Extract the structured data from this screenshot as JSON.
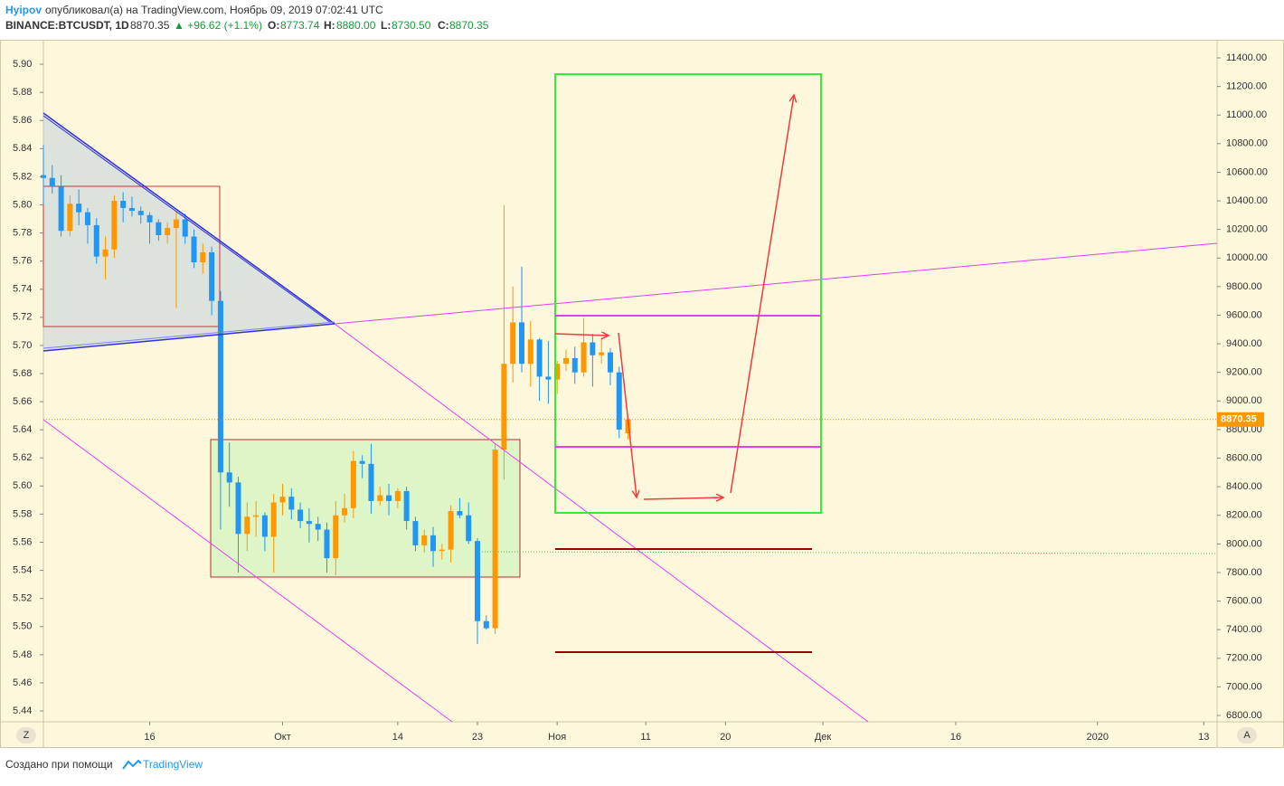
{
  "header": {
    "author": "Hyipov",
    "published": "опубликовал(а) на TradingView.com, Ноябрь 09, 2019 07:02:41 UTC",
    "symbol": "BINANCE:BTCUSDT, 1D",
    "last": "8870.35",
    "change": "▲ +96.62 (+1.1%)",
    "o_label": "O:",
    "o": "8773.74",
    "h_label": "H:",
    "h": "8880.00",
    "l_label": "L:",
    "l": "8730.50",
    "c_label": "C:",
    "c": "8870.35"
  },
  "footer": {
    "made_with": "Создано при помощи",
    "brand": "TradingView"
  },
  "buttons": {
    "left": "Z",
    "right": "A"
  },
  "chart_data": {
    "type": "candlestick",
    "up_color": "#ff9800",
    "down_color": "#2196f3",
    "grid": false,
    "x": [
      247,
      248,
      249,
      250,
      251,
      252,
      253,
      254,
      255,
      256,
      257,
      258,
      259,
      260,
      261,
      262,
      263,
      264,
      265,
      266,
      267,
      268,
      269,
      270,
      271,
      272,
      273,
      274,
      275,
      276,
      277,
      278,
      279,
      280,
      281,
      282,
      283,
      284,
      285,
      286,
      287,
      288,
      289,
      290,
      291,
      292,
      293,
      294,
      295,
      296,
      297,
      298,
      299,
      300,
      301,
      302,
      303,
      304,
      305,
      306,
      307,
      308,
      309,
      310,
      311,
      312,
      313
    ],
    "open": [
      10580,
      10560,
      10500,
      10190,
      10380,
      10320,
      10230,
      10010,
      10060,
      10400,
      10350,
      10330,
      10300,
      10250,
      10160,
      10210,
      10270,
      10150,
      9970,
      10040,
      9700,
      8500,
      8430,
      8070,
      8190,
      8200,
      8050,
      8290,
      8330,
      8240,
      8160,
      8140,
      8100,
      7900,
      8200,
      8250,
      8580,
      8560,
      8300,
      8340,
      8300,
      8370,
      8160,
      7990,
      8060,
      7950,
      7960,
      8230,
      8200,
      8020,
      7460,
      7410,
      8660,
      9260,
      9550,
      9260,
      9430,
      9170,
      9150,
      9260,
      9300,
      9200,
      9410,
      9320,
      9340,
      9200,
      8773.74
    ],
    "high": [
      10790,
      10650,
      10580,
      10440,
      10480,
      10350,
      10280,
      10150,
      10440,
      10460,
      10430,
      10360,
      10320,
      10270,
      10250,
      10320,
      10310,
      10200,
      10100,
      10080,
      9770,
      8710,
      8470,
      8290,
      8300,
      8220,
      8350,
      8420,
      8390,
      8290,
      8250,
      8190,
      8150,
      8300,
      8350,
      8650,
      8620,
      8700,
      8400,
      8420,
      8390,
      8400,
      8190,
      8100,
      8120,
      8000,
      8270,
      8320,
      8290,
      8040,
      7500,
      8700,
      10370,
      9800,
      9940,
      9560,
      9440,
      9420,
      9280,
      9360,
      9380,
      9580,
      9470,
      9440,
      9370,
      9240,
      8880
    ],
    "low": [
      10380,
      10450,
      10150,
      10150,
      10230,
      10100,
      9960,
      9850,
      10000,
      10250,
      10290,
      10240,
      10100,
      10120,
      10100,
      9650,
      10100,
      9930,
      9890,
      9600,
      8100,
      8260,
      7800,
      7950,
      8050,
      7950,
      7800,
      8200,
      8170,
      8110,
      8010,
      8020,
      7800,
      7780,
      8150,
      8180,
      8460,
      8210,
      8270,
      8200,
      8250,
      8100,
      7950,
      7940,
      7840,
      7890,
      7870,
      8180,
      8000,
      7300,
      7400,
      7370,
      8450,
      9130,
      9200,
      9100,
      9000,
      8980,
      9050,
      9210,
      9120,
      9170,
      9100,
      9260,
      9110,
      8740,
      8730.5
    ],
    "close": [
      10560,
      10500,
      10190,
      10380,
      10320,
      10230,
      10010,
      10060,
      10400,
      10350,
      10330,
      10300,
      10250,
      10160,
      10210,
      10270,
      10150,
      9970,
      10040,
      9700,
      8500,
      8430,
      8070,
      8190,
      8200,
      8050,
      8290,
      8330,
      8240,
      8160,
      8140,
      8100,
      7900,
      8200,
      8250,
      8580,
      8560,
      8300,
      8340,
      8300,
      8370,
      8160,
      7990,
      8060,
      7950,
      7960,
      8230,
      8200,
      8020,
      7460,
      7410,
      8660,
      9260,
      9550,
      9260,
      9430,
      9170,
      9150,
      9260,
      9300,
      9200,
      9410,
      9320,
      9340,
      9200,
      8800,
      8870.35
    ],
    "xlim": [
      247,
      379.5
    ],
    "xticks": [
      {
        "value": 259,
        "label": "16"
      },
      {
        "value": 274,
        "label": "Окт"
      },
      {
        "value": 287,
        "label": "14"
      },
      {
        "value": 296,
        "label": "23"
      },
      {
        "value": 305,
        "label": "Ноя"
      },
      {
        "value": 315,
        "label": "11"
      },
      {
        "value": 324,
        "label": "20"
      },
      {
        "value": 335,
        "label": "Дек"
      },
      {
        "value": 350,
        "label": "16"
      },
      {
        "value": 366,
        "label": "2020"
      },
      {
        "value": 378,
        "label": "13"
      }
    ],
    "ylim": [
      6755.7,
      11526.6
    ],
    "yticks": [
      {
        "value": 6800,
        "label": "6800.00"
      },
      {
        "value": 7000,
        "label": "7000.00"
      },
      {
        "value": 7200,
        "label": "7200.00"
      },
      {
        "value": 7400,
        "label": "7400.00"
      },
      {
        "value": 7600,
        "label": "7600.00"
      },
      {
        "value": 7800,
        "label": "7800.00"
      },
      {
        "value": 8000,
        "label": "8000.00"
      },
      {
        "value": 8200,
        "label": "8200.00"
      },
      {
        "value": 8400,
        "label": "8400.00"
      },
      {
        "value": 8600,
        "label": "8600.00"
      },
      {
        "value": 8800,
        "label": "8800.00"
      },
      {
        "value": 9000,
        "label": "9000.00"
      },
      {
        "value": 9200,
        "label": "9200.00"
      },
      {
        "value": 9400,
        "label": "9400.00"
      },
      {
        "value": 9600,
        "label": "9600.00"
      },
      {
        "value": 9800,
        "label": "9800.00"
      },
      {
        "value": 10000,
        "label": "10000.00"
      },
      {
        "value": 10200,
        "label": "10200.00"
      },
      {
        "value": 10400,
        "label": "10400.00"
      },
      {
        "value": 10600,
        "label": "10600.00"
      },
      {
        "value": 10800,
        "label": "10800.00"
      },
      {
        "value": 11000,
        "label": "11000.00"
      },
      {
        "value": 11200,
        "label": "11200.00"
      },
      {
        "value": 11400,
        "label": "11400.00"
      }
    ],
    "y2lim": [
      5.4323,
      5.9174
    ],
    "y2ticks": [
      {
        "value": 5.44,
        "label": "5.44"
      },
      {
        "value": 5.46,
        "label": "5.46"
      },
      {
        "value": 5.48,
        "label": "5.48"
      },
      {
        "value": 5.5,
        "label": "5.50"
      },
      {
        "value": 5.52,
        "label": "5.52"
      },
      {
        "value": 5.54,
        "label": "5.54"
      },
      {
        "value": 5.56,
        "label": "5.56"
      },
      {
        "value": 5.58,
        "label": "5.58"
      },
      {
        "value": 5.6,
        "label": "5.60"
      },
      {
        "value": 5.62,
        "label": "5.62"
      },
      {
        "value": 5.64,
        "label": "5.64"
      },
      {
        "value": 5.66,
        "label": "5.66"
      },
      {
        "value": 5.68,
        "label": "5.68"
      },
      {
        "value": 5.7,
        "label": "5.70"
      },
      {
        "value": 5.72,
        "label": "5.72"
      },
      {
        "value": 5.74,
        "label": "5.74"
      },
      {
        "value": 5.76,
        "label": "5.76"
      },
      {
        "value": 5.78,
        "label": "5.78"
      },
      {
        "value": 5.8,
        "label": "5.80"
      },
      {
        "value": 5.82,
        "label": "5.82"
      },
      {
        "value": 5.84,
        "label": "5.84"
      },
      {
        "value": 5.86,
        "label": "5.86"
      },
      {
        "value": 5.88,
        "label": "5.88"
      },
      {
        "value": 5.9,
        "label": "5.90"
      }
    ]
  }
}
